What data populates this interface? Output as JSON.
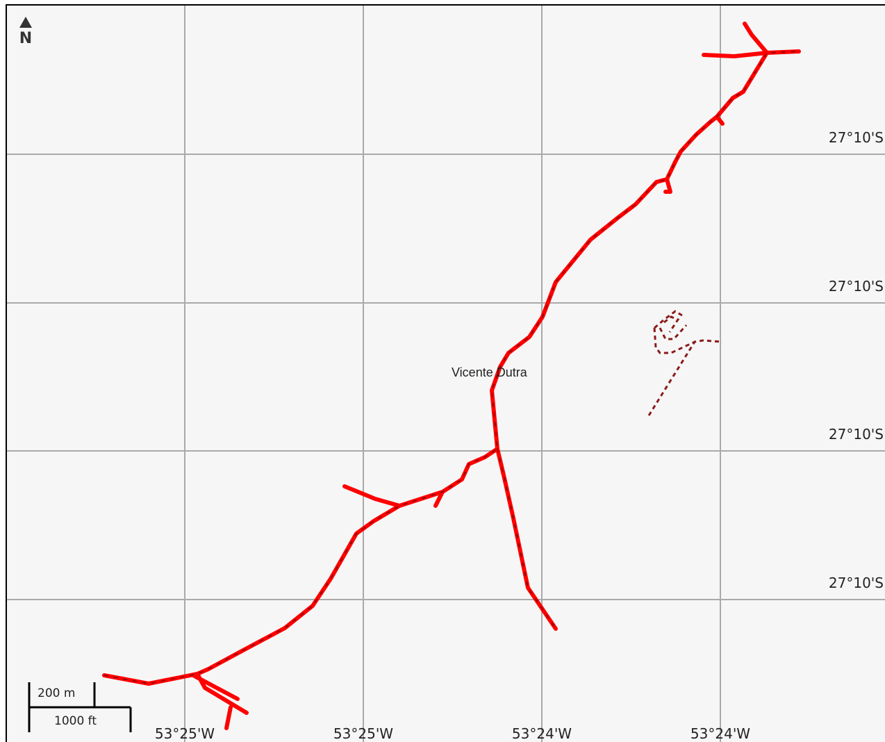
{
  "map": {
    "north_arrow": {
      "icon": "north-arrow-icon",
      "letter": "N"
    },
    "latitude_labels": [
      "27°10'S",
      "27°10'S",
      "27°10'S",
      "27°10'S"
    ],
    "longitude_labels": [
      "53°25'W",
      "53°25'W",
      "53°24'W",
      "53°24'W"
    ],
    "place_name": "Vicente Dutra",
    "scale": {
      "metric": "200 m",
      "imperial": "1000 ft"
    },
    "colors": {
      "road": "#ff0000",
      "road_dash": "#7a0000",
      "track": "#8b1a1a",
      "grid": "#a9a9a9",
      "background": "#f6f6f6"
    }
  }
}
